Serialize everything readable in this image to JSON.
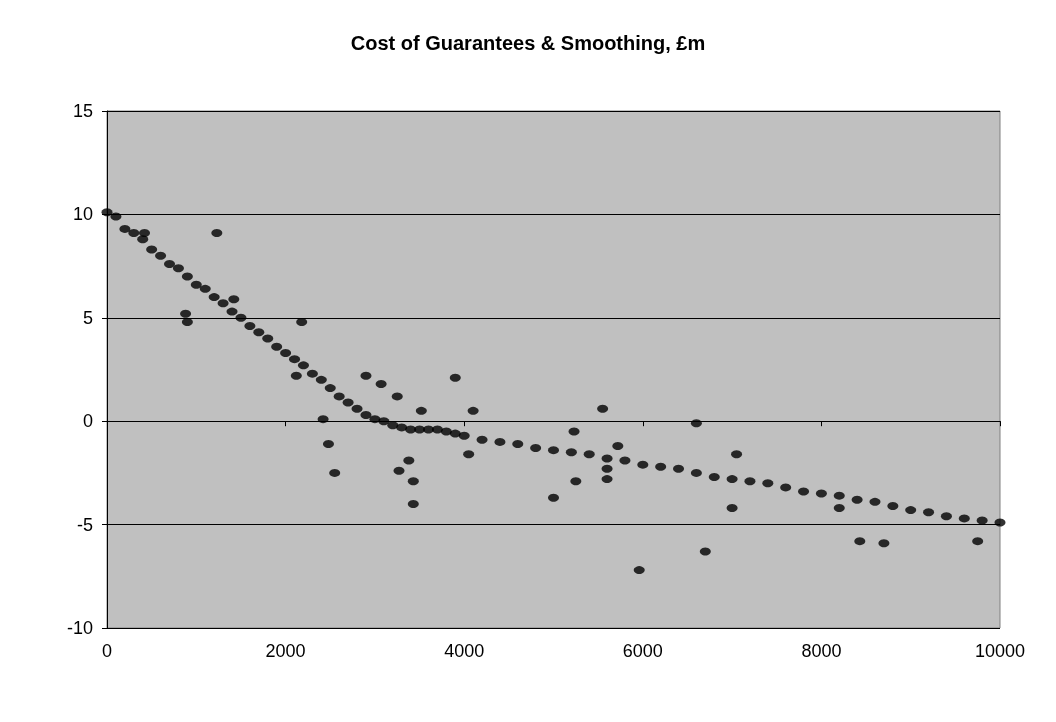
{
  "chart_data": {
    "type": "scatter",
    "title": "Cost of Guarantees & Smoothing, £m",
    "x": [
      0,
      100,
      200,
      300,
      400,
      500,
      600,
      700,
      800,
      900,
      1000,
      1100,
      1200,
      1300,
      1400,
      1500,
      1600,
      1700,
      1800,
      1900,
      2000,
      2100,
      2200,
      2300,
      2400,
      2500,
      2600,
      2700,
      2800,
      2900,
      3000,
      3100,
      3200,
      3300,
      3400,
      3500,
      3600,
      3700,
      3800,
      3900,
      4000,
      4200,
      4400,
      4600,
      4800,
      5000,
      5200,
      5400,
      5600,
      5800,
      6000,
      6200,
      6400,
      6600,
      6800,
      7000,
      7200,
      7400,
      7600,
      7800,
      8000,
      8200,
      8400,
      8600,
      8800,
      9000,
      9200,
      9400,
      9600,
      9800,
      10000,
      880,
      900,
      1230,
      1420,
      2180,
      2120,
      2420,
      2480,
      2550,
      2900,
      3070,
      3250,
      3270,
      3380,
      3430,
      3430,
      3520,
      3900,
      4100,
      4050,
      5000,
      5230,
      5250,
      5550,
      5600,
      5600,
      5720,
      5960,
      6600,
      6700,
      7000,
      7050,
      8200,
      8430,
      8700,
      9750,
      420
    ],
    "values": [
      10.1,
      9.9,
      9.3,
      9.1,
      8.8,
      8.3,
      8.0,
      7.6,
      7.4,
      7.0,
      6.6,
      6.4,
      6.0,
      5.7,
      5.3,
      5.0,
      4.6,
      4.3,
      4.0,
      3.6,
      3.3,
      3.0,
      2.7,
      2.3,
      2.0,
      1.6,
      1.2,
      0.9,
      0.6,
      0.3,
      0.1,
      0.0,
      -0.2,
      -0.3,
      -0.4,
      -0.4,
      -0.4,
      -0.4,
      -0.5,
      -0.6,
      -0.7,
      -0.9,
      -1.0,
      -1.1,
      -1.3,
      -1.4,
      -1.5,
      -1.6,
      -1.8,
      -1.9,
      -2.1,
      -2.2,
      -2.3,
      -2.5,
      -2.7,
      -2.8,
      -2.9,
      -3.0,
      -3.2,
      -3.4,
      -3.5,
      -3.6,
      -3.8,
      -3.9,
      -4.1,
      -4.3,
      -4.4,
      -4.6,
      -4.7,
      -4.8,
      -4.9,
      5.2,
      4.8,
      9.1,
      5.9,
      4.8,
      2.2,
      0.1,
      -1.1,
      -2.5,
      2.2,
      1.8,
      1.2,
      -2.4,
      -1.9,
      -2.9,
      -4.0,
      0.5,
      2.1,
      0.5,
      -1.6,
      -3.7,
      -0.5,
      -2.9,
      0.6,
      -2.3,
      -2.8,
      -1.2,
      -7.2,
      -0.1,
      -6.3,
      -4.2,
      -1.6,
      -4.2,
      -5.8,
      -5.9,
      -5.8,
      9.1
    ],
    "color": "#000000",
    "marker": "circle",
    "xlim": [
      0,
      10000
    ],
    "xticks": [
      0,
      2000,
      4000,
      6000,
      8000,
      10000
    ],
    "ylim": [
      -10,
      15
    ],
    "yticks": [
      -10,
      -5,
      0,
      5,
      10,
      15
    ],
    "grid": "y"
  }
}
